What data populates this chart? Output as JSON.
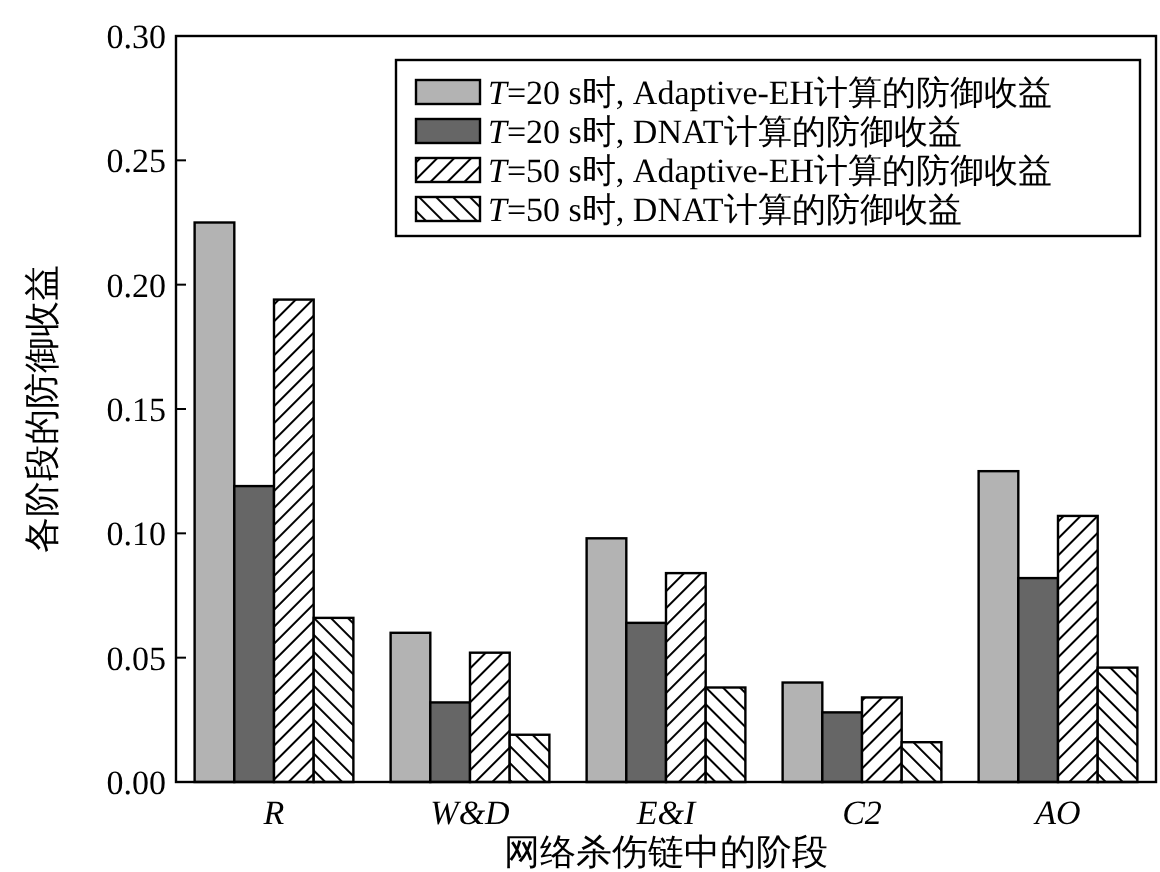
{
  "chart_data": {
    "type": "bar",
    "xlabel": "网络杀伤链中的阶段",
    "ylabel": "各阶段的防御收益",
    "categories": [
      "R",
      "W&D",
      "E&I",
      "C2",
      "AO"
    ],
    "series": [
      {
        "name": "*T*=20 s时, Adaptive-EH计算的防御收益",
        "color": "#b3b3b3",
        "values": [
          0.225,
          0.06,
          0.098,
          0.04,
          0.125
        ]
      },
      {
        "name": "*T*=20 s时, DNAT计算的防御收益",
        "color": "#666666",
        "values": [
          0.119,
          0.032,
          0.064,
          0.028,
          0.082
        ]
      },
      {
        "name": "*T*=50 s时, Adaptive-EH计算的防御收益",
        "color": "#000000",
        "values": [
          0.194,
          0.052,
          0.084,
          0.034,
          0.107
        ]
      },
      {
        "name": "*T*=50 s时, DNAT计算的防御收益",
        "color": "#000000",
        "values": [
          0.066,
          0.019,
          0.038,
          0.016,
          0.046
        ]
      }
    ],
    "ylim": [
      0,
      0.3
    ],
    "yticks": [
      {
        "value": 0,
        "label": "0.00"
      },
      {
        "value": 0.05,
        "label": "0.05"
      },
      {
        "value": 0.1,
        "label": "0.10"
      },
      {
        "value": 0.15,
        "label": "0.15"
      },
      {
        "value": 0.2,
        "label": "0.20"
      },
      {
        "value": 0.25,
        "label": "0.25"
      },
      {
        "value": 0.3,
        "label": "0.30"
      }
    ],
    "legend": "top right"
  }
}
